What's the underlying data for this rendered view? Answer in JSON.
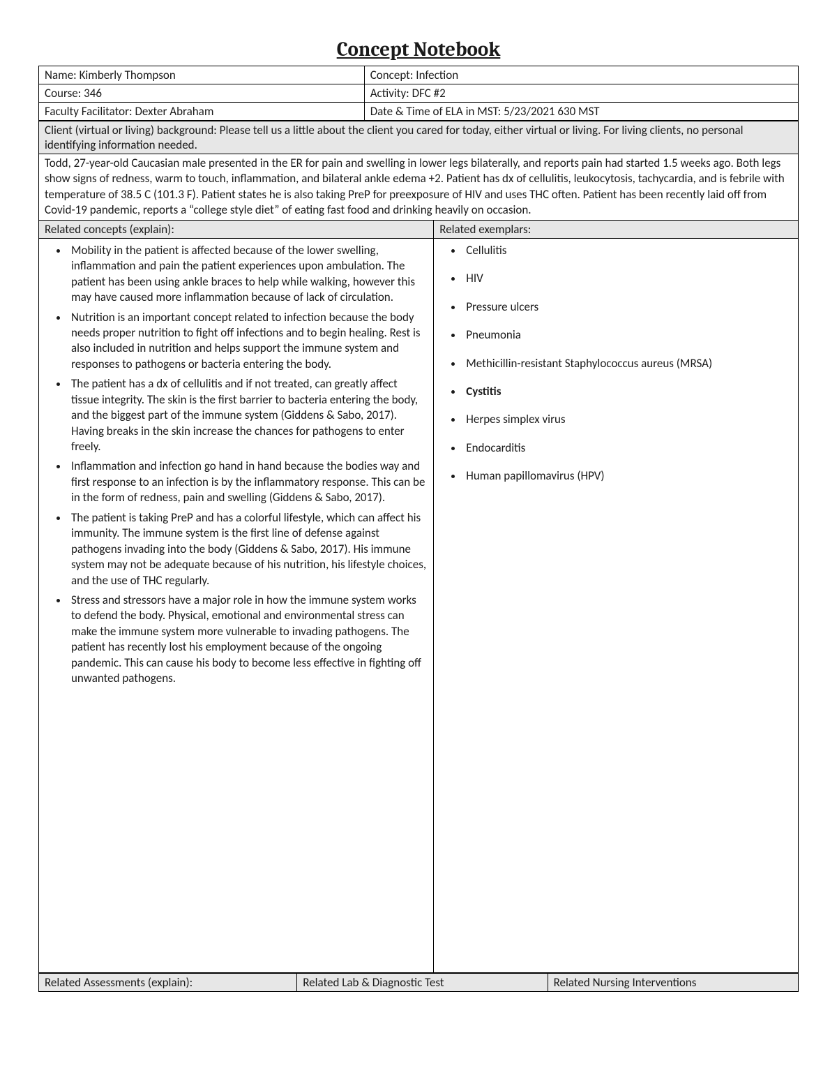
{
  "title": "Concept Notebook",
  "header": {
    "name_label": "Name: ",
    "name_value": "Kimberly Thompson",
    "concept_label": "Concept: ",
    "concept_value": "Infection",
    "course_label": "Course: ",
    "course_value": "346",
    "activity_label": "Activity: ",
    "activity_value": "DFC #2",
    "facilitator_label": "Faculty Facilitator: ",
    "facilitator_value": "Dexter Abraham",
    "datetime_label": "Date & Time of ELA in MST: ",
    "datetime_value": "5/23/2021 630 MST"
  },
  "background": {
    "prompt": "Client (virtual or living) background: Please tell us a little about the client you cared for today, either virtual or living. For living clients, no personal identifying information needed.",
    "text": "Todd, 27-year-old Caucasian male presented in the ER for pain and swelling in lower legs bilaterally, and reports pain had started 1.5 weeks ago. Both legs show signs of redness, warm to touch, inflammation, and bilateral ankle edema +2. Patient has dx of cellulitis, leukocytosis, tachycardia, and is febrile with temperature of 38.5 C (101.3 F). Patient states he is also taking PreP for preexposure of HIV and uses THC often. Patient has been recently laid off from Covid-19 pandemic, reports a “college style diet” of eating fast food and drinking heavily on occasion."
  },
  "related_concepts": {
    "label": "Related concepts (explain):",
    "items": [
      "Mobility in the patient is affected because of the lower swelling, inflammation and pain the patient experiences upon ambulation. The patient has been using ankle braces to help while walking, however this may have caused more inflammation because of lack of circulation.",
      "Nutrition is an important concept related to infection because the body needs proper nutrition to fight off infections and to begin healing. Rest is also included in nutrition and helps support the immune system and responses to pathogens or bacteria entering the body.",
      "The patient has a dx of cellulitis and if not treated, can greatly affect tissue integrity. The skin is the first barrier to bacteria entering the body, and the biggest part of the immune system (Giddens & Sabo, 2017). Having breaks in the skin increase the chances for pathogens to enter freely.",
      "Inflammation and infection go hand in hand because the bodies way and first response to an infection is by the inflammatory response. This can be in the form of redness, pain and swelling (Giddens & Sabo, 2017).",
      "The patient is taking PreP and has a colorful lifestyle, which can affect his immunity. The immune system is the first line of defense against pathogens invading into the body (Giddens & Sabo, 2017). His immune system may not be adequate because of his nutrition, his lifestyle choices, and the use of THC regularly.",
      "Stress and stressors have a major role in how the immune system works to defend the body. Physical, emotional and environmental stress can make the immune system more vulnerable to invading pathogens. The patient has recently lost his employment because of the ongoing pandemic. This can cause his body to become less effective in fighting off unwanted pathogens."
    ]
  },
  "related_exemplars": {
    "label": "Related exemplars:",
    "items": [
      "Cellulitis",
      "HIV",
      "Pressure ulcers",
      "Pneumonia",
      "Methicillin-resistant Staphylococcus aureus (MRSA)",
      "Cystitis",
      "Herpes simplex virus",
      "Endocarditis",
      "Human papillomavirus (HPV)"
    ],
    "bold_index": 5
  },
  "bottom": {
    "assessments": "Related Assessments (explain):",
    "labs": "Related Lab & Diagnostic Test",
    "interventions": "Related Nursing Interventions"
  },
  "style": {
    "background_color": "#ffffff",
    "grey_fill": "#e7e7e7",
    "border_color": "#000000",
    "title_fontsize": 29,
    "body_fontsize": 17
  }
}
